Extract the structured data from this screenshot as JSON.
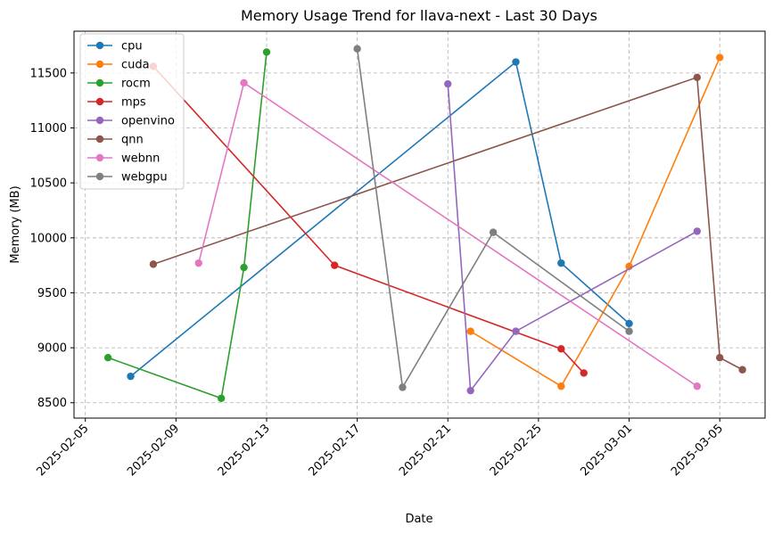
{
  "chart_data": {
    "type": "line",
    "title": "Memory Usage Trend for llava-next - Last 30 Days",
    "xlabel": "Date",
    "ylabel": "Memory (MB)",
    "x_type": "date",
    "xlim": [
      "2025-02-04T12:00",
      "2025-03-07T00:00"
    ],
    "ylim": [
      8360,
      11880
    ],
    "x_ticks": [
      "2025-02-05",
      "2025-02-09",
      "2025-02-13",
      "2025-02-17",
      "2025-02-21",
      "2025-02-25",
      "2025-03-01",
      "2025-03-05"
    ],
    "y_ticks": [
      8500,
      9000,
      9500,
      10000,
      10500,
      11000,
      11500
    ],
    "grid": true,
    "legend_position": "top-left",
    "series": [
      {
        "name": "cpu",
        "color": "#1f77b4",
        "x": [
          "2025-02-07",
          "2025-02-24",
          "2025-02-26",
          "2025-02-29"
        ],
        "y": [
          8740,
          11600,
          9770,
          9220
        ]
      },
      {
        "name": "cuda",
        "color": "#ff7f0e",
        "x": [
          "2025-02-22",
          "2025-02-26",
          "2025-02-29",
          "2025-03-05"
        ],
        "y": [
          9150,
          8650,
          9740,
          11640
        ]
      },
      {
        "name": "rocm",
        "color": "#2ca02c",
        "x": [
          "2025-02-06",
          "2025-02-11",
          "2025-02-12",
          "2025-02-13"
        ],
        "y": [
          8910,
          8540,
          9730,
          11690
        ]
      },
      {
        "name": "mps",
        "color": "#d62728",
        "x": [
          "2025-02-08",
          "2025-02-16",
          "2025-02-26",
          "2025-02-27"
        ],
        "y": [
          11560,
          9750,
          8990,
          8770
        ]
      },
      {
        "name": "openvino",
        "color": "#9467bd",
        "x": [
          "2025-02-21",
          "2025-02-22",
          "2025-02-24",
          "2025-03-04"
        ],
        "y": [
          11400,
          8610,
          9150,
          10060
        ]
      },
      {
        "name": "qnn",
        "color": "#8c564b",
        "x": [
          "2025-02-08",
          "2025-03-04",
          "2025-03-05",
          "2025-03-06"
        ],
        "y": [
          9760,
          11460,
          8910,
          8800
        ]
      },
      {
        "name": "webnn",
        "color": "#e377c2",
        "x": [
          "2025-02-10",
          "2025-02-12",
          "2025-03-04"
        ],
        "y": [
          9770,
          11410,
          8650
        ]
      },
      {
        "name": "webgpu",
        "color": "#7f7f7f",
        "x": [
          "2025-02-17",
          "2025-02-19",
          "2025-02-23",
          "2025-02-29"
        ],
        "y": [
          11720,
          8640,
          10050,
          9150
        ]
      }
    ]
  }
}
